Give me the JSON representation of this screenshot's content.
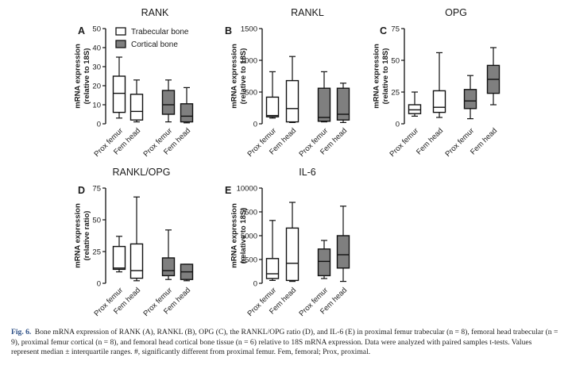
{
  "figure": {
    "label": "Fig. 6.",
    "caption": "Bone mRNA expression of RANK (A), RANKL (B), OPG (C), the RANKL/OPG ratio (D), and IL-6 (E) in proximal femur trabecular (n = 8), femoral head trabecular (n = 9), proximal femur cortical (n = 8), and femoral head cortical bone tissue (n = 6) relative to 18S mRNA expression. Data were analyzed with paired samples t-tests. Values represent median ± interquartile ranges. #, significantly different from proximal femur. Fem, femoral; Prox, proximal."
  },
  "legend": [
    {
      "label": "Trabecular bone",
      "color": "#ffffff"
    },
    {
      "label": "Cortical bone",
      "color": "#7f7f7f"
    }
  ],
  "chart_data": [
    {
      "type": "boxplot",
      "panel": "A",
      "title": "RANK",
      "ylabel": "mRNA expression (relative to 18S)",
      "ylim": [
        0,
        50
      ],
      "yticks": [
        0,
        10,
        20,
        30,
        40,
        50
      ],
      "categories": [
        "Prox femur",
        "Fem head",
        "Prox femur",
        "Fem head"
      ],
      "groups": [
        "Trabecular bone",
        "Trabecular bone",
        "Cortical bone",
        "Cortical bone"
      ],
      "boxes": [
        {
          "min": 3,
          "q1": 6,
          "median": 16,
          "q3": 25,
          "max": 35
        },
        {
          "min": 1,
          "q1": 2,
          "median": 6.5,
          "q3": 15.5,
          "max": 23
        },
        {
          "min": 1,
          "q1": 5,
          "median": 10,
          "q3": 17.5,
          "max": 23
        },
        {
          "min": 0.5,
          "q1": 1,
          "median": 4,
          "q3": 10.5,
          "max": 19
        }
      ]
    },
    {
      "type": "boxplot",
      "panel": "B",
      "title": "RANKL",
      "ylabel": "mRNA expression (relative to 18S)",
      "ylim": [
        0,
        1500
      ],
      "yticks": [
        0,
        500,
        1000,
        1500
      ],
      "categories": [
        "Prox femur",
        "Fem head",
        "Prox femur",
        "Fem head"
      ],
      "groups": [
        "Trabecular bone",
        "Trabecular bone",
        "Cortical bone",
        "Cortical bone"
      ],
      "boxes": [
        {
          "min": 90,
          "q1": 110,
          "median": 130,
          "q3": 420,
          "max": 820
        },
        {
          "min": 20,
          "q1": 30,
          "median": 240,
          "q3": 680,
          "max": 1060
        },
        {
          "min": 30,
          "q1": 40,
          "median": 100,
          "q3": 560,
          "max": 820
        },
        {
          "min": 20,
          "q1": 60,
          "median": 150,
          "q3": 560,
          "max": 640
        }
      ]
    },
    {
      "type": "boxplot",
      "panel": "C",
      "title": "OPG",
      "ylabel": "mRNA expression (relative to 18S)",
      "ylim": [
        0,
        75
      ],
      "yticks": [
        0,
        25,
        50,
        75
      ],
      "categories": [
        "Prox femur",
        "Fem head",
        "Prox femur",
        "Fem head"
      ],
      "groups": [
        "Trabecular bone",
        "Trabecular bone",
        "Cortical bone",
        "Cortical bone"
      ],
      "boxes": [
        {
          "min": 6,
          "q1": 8,
          "median": 11,
          "q3": 15,
          "max": 25
        },
        {
          "min": 5,
          "q1": 9,
          "median": 13,
          "q3": 26,
          "max": 56
        },
        {
          "min": 4,
          "q1": 12,
          "median": 18,
          "q3": 27,
          "max": 38
        },
        {
          "min": 15,
          "q1": 24,
          "median": 35,
          "q3": 46,
          "max": 60
        }
      ]
    },
    {
      "type": "boxplot",
      "panel": "D",
      "title": "RANKL/OPG",
      "ylabel": "mRNA expression (relative ratio)",
      "ylim": [
        0,
        75
      ],
      "yticks": [
        0,
        25,
        50,
        75
      ],
      "categories": [
        "Prox femur",
        "Fem head",
        "Prox femur",
        "Fem head"
      ],
      "groups": [
        "Trabecular bone",
        "Trabecular bone",
        "Cortical bone",
        "Cortical bone"
      ],
      "boxes": [
        {
          "min": 9,
          "q1": 11,
          "median": 12,
          "q3": 29,
          "max": 37
        },
        {
          "min": 2,
          "q1": 4,
          "median": 10,
          "q3": 31,
          "max": 68
        },
        {
          "min": 3,
          "q1": 6,
          "median": 10,
          "q3": 20,
          "max": 42
        },
        {
          "min": 2,
          "q1": 3,
          "median": 9,
          "q3": 15,
          "max": 15
        }
      ]
    },
    {
      "type": "boxplot",
      "panel": "E",
      "title": "IL-6",
      "ylabel": "mRNA expression (relative to 18S)",
      "ylim": [
        0,
        10000
      ],
      "yticks": [
        0,
        2500,
        5000,
        7500,
        10000
      ],
      "categories": [
        "Prox femur",
        "Fem head",
        "Prox femur",
        "Fem head"
      ],
      "groups": [
        "Trabecular bone",
        "Trabecular bone",
        "Cortical bone",
        "Cortical bone"
      ],
      "boxes": [
        {
          "min": 300,
          "q1": 500,
          "median": 1000,
          "q3": 2600,
          "max": 6600
        },
        {
          "min": 200,
          "q1": 300,
          "median": 2100,
          "q3": 5800,
          "max": 8500
        },
        {
          "min": 500,
          "q1": 800,
          "median": 2300,
          "q3": 3600,
          "max": 4500
        },
        {
          "min": 200,
          "q1": 1600,
          "median": 3000,
          "q3": 5000,
          "max": 8100
        }
      ]
    }
  ]
}
